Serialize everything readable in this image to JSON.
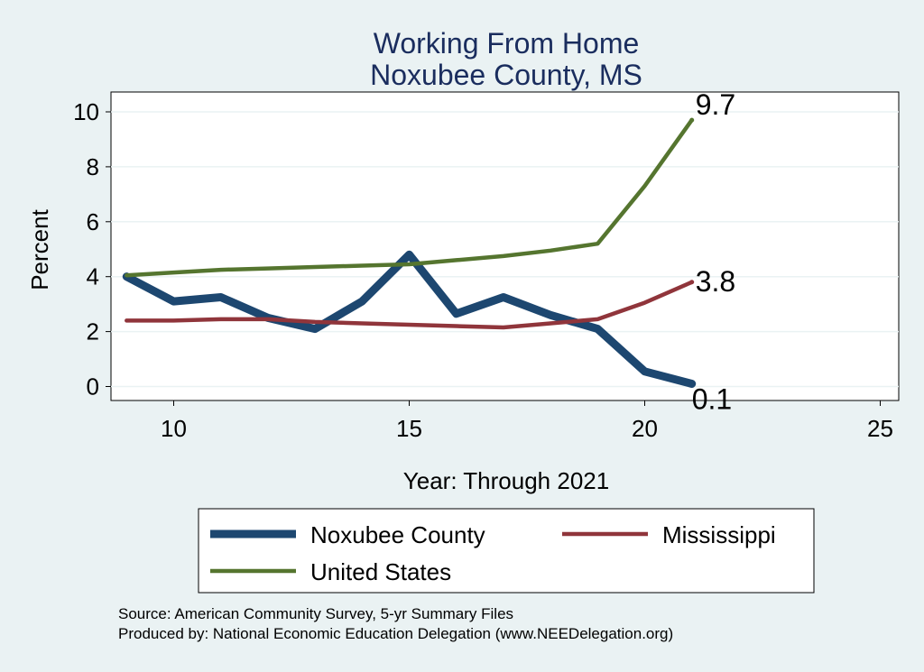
{
  "chart_data": {
    "type": "line",
    "title": [
      "Working From Home",
      "Noxubee County, MS"
    ],
    "xlabel": "Year: Through 2021",
    "ylabel": "Percent",
    "xlim": [
      8.8,
      25
    ],
    "ylim": [
      -0.5,
      10.5
    ],
    "xticks": [
      10,
      15,
      20,
      25
    ],
    "yticks": [
      0,
      2,
      4,
      6,
      8,
      10
    ],
    "grid": true,
    "legend_position": "bottom",
    "series": [
      {
        "name": "Noxubee County",
        "color": "#1d4770",
        "x": [
          9,
          10,
          11,
          12,
          13,
          14,
          15,
          16,
          17,
          18,
          19,
          20,
          21
        ],
        "values": [
          4.0,
          3.1,
          3.25,
          2.5,
          2.1,
          3.1,
          4.8,
          2.65,
          3.25,
          2.6,
          2.1,
          0.55,
          0.1
        ],
        "end_label": "0.1"
      },
      {
        "name": "Mississippi",
        "color": "#90353b",
        "x": [
          9,
          10,
          11,
          12,
          13,
          14,
          15,
          16,
          17,
          18,
          19,
          20,
          21
        ],
        "values": [
          2.4,
          2.4,
          2.45,
          2.45,
          2.35,
          2.3,
          2.25,
          2.2,
          2.15,
          2.3,
          2.45,
          3.05,
          3.8
        ],
        "end_label": "3.8"
      },
      {
        "name": "United States",
        "color": "#55752f",
        "x": [
          9,
          10,
          11,
          12,
          13,
          14,
          15,
          16,
          17,
          18,
          19,
          20,
          21
        ],
        "values": [
          4.05,
          4.15,
          4.25,
          4.3,
          4.35,
          4.4,
          4.45,
          4.6,
          4.75,
          4.95,
          5.2,
          7.3,
          9.7
        ],
        "end_label": "9.7"
      }
    ],
    "notes": [
      "Source: American Community Survey, 5-yr Summary Files",
      "Produced by: National Economic Education Delegation (www.NEEDelegation.org)"
    ]
  }
}
